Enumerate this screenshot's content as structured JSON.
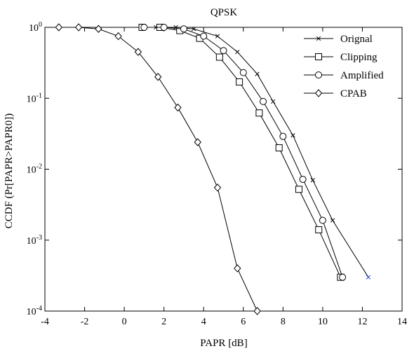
{
  "chart_data": {
    "type": "line",
    "title": "QPSK",
    "xlabel": "PAPR [dB]",
    "ylabel": "CCDF (Pr[PAPR>PAPR0])",
    "xlim": [
      -4,
      14
    ],
    "ylim": [
      0.0001,
      1
    ],
    "yscale": "log",
    "x_ticks": [
      "-4",
      "-2",
      "0",
      "2",
      "4",
      "6",
      "8",
      "10",
      "12",
      "14"
    ],
    "y_ticks": [
      {
        "base": "10",
        "exp": "0"
      },
      {
        "base": "10",
        "exp": "-1"
      },
      {
        "base": "10",
        "exp": "-2"
      },
      {
        "base": "10",
        "exp": "-3"
      },
      {
        "base": "10",
        "exp": "-4"
      }
    ],
    "grid": false,
    "legend_position": "top-right",
    "series": [
      {
        "name": "Orignal",
        "marker": "x",
        "points": [
          [
            1.6,
            1.0
          ],
          [
            2.6,
            1.0
          ],
          [
            3.5,
            0.95
          ],
          [
            4.7,
            0.75
          ],
          [
            5.7,
            0.45
          ],
          [
            6.7,
            0.22
          ],
          [
            7.5,
            0.09
          ],
          [
            8.5,
            0.03
          ],
          [
            9.5,
            0.007
          ],
          [
            10.5,
            0.0019
          ],
          [
            12.3,
            0.0003
          ]
        ]
      },
      {
        "name": "Clipping",
        "marker": "square",
        "points": [
          [
            0.9,
            1.0
          ],
          [
            1.8,
            1.0
          ],
          [
            2.8,
            0.9
          ],
          [
            3.8,
            0.7
          ],
          [
            4.8,
            0.38
          ],
          [
            5.8,
            0.17
          ],
          [
            6.8,
            0.062
          ],
          [
            7.8,
            0.02
          ],
          [
            8.8,
            0.0052
          ],
          [
            9.8,
            0.0014
          ],
          [
            10.9,
            0.0003
          ]
        ]
      },
      {
        "name": "Amplified",
        "marker": "circle",
        "points": [
          [
            1.0,
            1.0
          ],
          [
            2.0,
            1.0
          ],
          [
            3.0,
            0.95
          ],
          [
            4.0,
            0.75
          ],
          [
            5.0,
            0.47
          ],
          [
            6.0,
            0.23
          ],
          [
            7.0,
            0.09
          ],
          [
            8.0,
            0.029
          ],
          [
            9.0,
            0.0072
          ],
          [
            10.0,
            0.0019
          ],
          [
            11.0,
            0.0003
          ]
        ]
      },
      {
        "name": "CPAB",
        "marker": "diamond",
        "points": [
          [
            -3.3,
            1.0
          ],
          [
            -2.3,
            1.0
          ],
          [
            -1.3,
            0.95
          ],
          [
            -0.3,
            0.75
          ],
          [
            0.7,
            0.45
          ],
          [
            1.7,
            0.2
          ],
          [
            2.7,
            0.074
          ],
          [
            3.7,
            0.024
          ],
          [
            4.7,
            0.0055
          ],
          [
            5.7,
            0.0004
          ],
          [
            6.7,
            0.0001
          ]
        ]
      }
    ]
  },
  "colors": {
    "axis": "#000000",
    "line": "#000000",
    "ylabel": "#c0392b",
    "endpoint_marker": "#2a4bd7"
  }
}
